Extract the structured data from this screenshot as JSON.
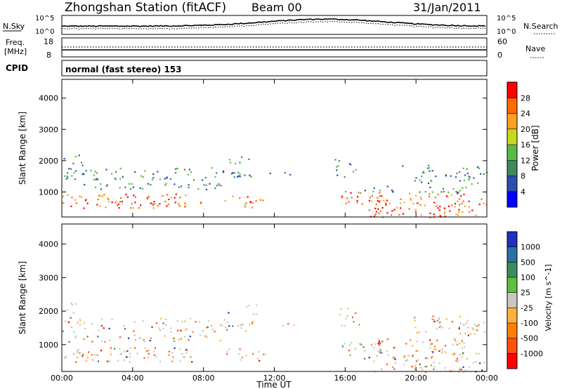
{
  "header": {
    "title": "Zhongshan Station (fitACF)",
    "beam": "Beam 00",
    "date": "31/Jan/2011"
  },
  "noise_panel": {
    "left_label": "N.Sky",
    "left_top": "10^5",
    "left_bottom": "10^0",
    "right_top": "10^5",
    "right_bottom": "10^0",
    "right_label": "N.Search"
  },
  "freq_panel": {
    "left_label_1": "Freq.",
    "left_label_2": "[MHz]",
    "left_top": "18",
    "left_bottom": "8",
    "right_top": "60",
    "right_bottom": "0",
    "right_label": "Nave"
  },
  "cpid": {
    "label": "CPID",
    "value": "normal (fast stereo) 153"
  },
  "chart_data": [
    {
      "type": "heatmap",
      "panel": "power",
      "ylabel": "Slant Range [km]",
      "ylim": [
        200,
        4600
      ],
      "yticks": [
        "1000",
        "2000",
        "3000",
        "4000"
      ],
      "colorbar": {
        "label": "Power [dB]",
        "ticks": [
          "4",
          "8",
          "12",
          "16",
          "20",
          "24",
          "28"
        ],
        "colors": [
          "#0000ff",
          "#2a4fb4",
          "#3e8a5e",
          "#5cb84a",
          "#c8d820",
          "#ffa020",
          "#ff6a00",
          "#ff0000"
        ]
      }
    },
    {
      "type": "heatmap",
      "panel": "velocity",
      "ylabel": "Slant Range [km]",
      "xlabel": "Time UT",
      "ylim": [
        200,
        4600
      ],
      "yticks": [
        "1000",
        "2000",
        "3000",
        "4000"
      ],
      "xticks": [
        "00:00",
        "04:00",
        "08:00",
        "12:00",
        "16:00",
        "20:00",
        "00:00"
      ],
      "colorbar": {
        "label": "Velocity [m s^-1]",
        "ticks": [
          "1000",
          "500",
          "100",
          "25",
          "-25",
          "-100",
          "-500",
          "-1000"
        ],
        "colors": [
          "#2030c0",
          "#2a70a0",
          "#3e8a5e",
          "#5cc040",
          "#c8c8c0",
          "#ffb040",
          "#ff8000",
          "#ff5010",
          "#ff0000"
        ]
      }
    }
  ]
}
